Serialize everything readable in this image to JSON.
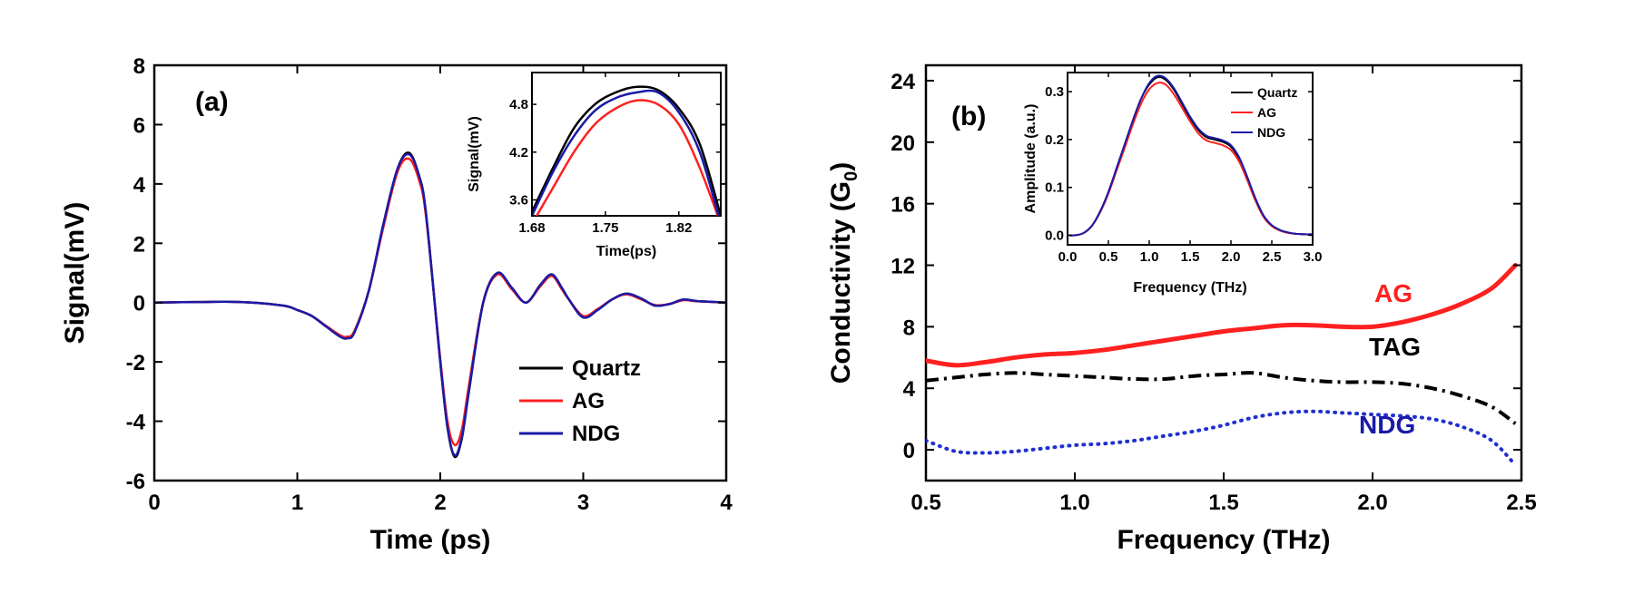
{
  "colors": {
    "quartz": "#000000",
    "ag": "#ff2020",
    "ndg": "#1a1aa8",
    "ndg_dot": "#2030d0"
  },
  "chart_data": [
    {
      "id": "a",
      "type": "line",
      "panel_label": "(a)",
      "xlabel": "Time (ps)",
      "ylabel": "Signal(mV)",
      "xlim": [
        0,
        4
      ],
      "ylim": [
        -6,
        8
      ],
      "x_ticks": [
        0,
        1,
        2,
        3,
        4
      ],
      "y_ticks": [
        -6,
        -4,
        -2,
        0,
        2,
        4,
        6,
        8
      ],
      "x_tick_labels": [
        "0",
        "1",
        "2",
        "3",
        "4"
      ],
      "y_tick_labels": [
        "-6",
        "-4",
        "-2",
        "0",
        "2",
        "4",
        "6",
        "8"
      ],
      "legend": [
        "Quartz",
        "AG",
        "NDG"
      ],
      "legend_position": "lower-right",
      "x": [
        0,
        0.3,
        0.6,
        0.9,
        1.0,
        1.1,
        1.2,
        1.3,
        1.35,
        1.4,
        1.5,
        1.6,
        1.7,
        1.78,
        1.85,
        1.9,
        2.0,
        2.05,
        2.1,
        2.15,
        2.2,
        2.3,
        2.4,
        2.5,
        2.6,
        2.7,
        2.78,
        2.85,
        2.9,
        3.0,
        3.1,
        3.2,
        3.3,
        3.4,
        3.5,
        3.6,
        3.7,
        3.8,
        4.0
      ],
      "series": [
        {
          "name": "Quartz",
          "values": [
            0,
            0.02,
            0.02,
            -0.1,
            -0.25,
            -0.45,
            -0.8,
            -1.15,
            -1.2,
            -1.0,
            0.4,
            2.6,
            4.5,
            5.05,
            4.3,
            3.0,
            -2.0,
            -4.2,
            -5.2,
            -4.6,
            -3.0,
            0.0,
            1.0,
            0.5,
            0.0,
            0.6,
            0.95,
            0.5,
            0.1,
            -0.5,
            -0.25,
            0.1,
            0.3,
            0.15,
            -0.1,
            -0.05,
            0.1,
            0.05,
            0
          ]
        },
        {
          "name": "AG",
          "values": [
            0,
            0.02,
            0.02,
            -0.1,
            -0.25,
            -0.45,
            -0.78,
            -1.1,
            -1.15,
            -0.95,
            0.4,
            2.5,
            4.4,
            4.85,
            4.15,
            2.9,
            -1.9,
            -4.0,
            -4.8,
            -4.3,
            -2.8,
            0.0,
            0.95,
            0.45,
            0.0,
            0.55,
            0.9,
            0.45,
            0.1,
            -0.45,
            -0.22,
            0.1,
            0.28,
            0.12,
            -0.08,
            -0.05,
            0.08,
            0.04,
            0
          ]
        },
        {
          "name": "NDG",
          "values": [
            0,
            0.02,
            0.02,
            -0.1,
            -0.25,
            -0.45,
            -0.8,
            -1.15,
            -1.2,
            -1.0,
            0.4,
            2.6,
            4.5,
            5.0,
            4.3,
            3.0,
            -2.0,
            -4.2,
            -5.15,
            -4.55,
            -3.0,
            0.0,
            1.0,
            0.5,
            0.0,
            0.6,
            0.95,
            0.5,
            0.1,
            -0.5,
            -0.25,
            0.1,
            0.3,
            0.15,
            -0.1,
            -0.05,
            0.1,
            0.05,
            0
          ]
        }
      ],
      "inset": {
        "type": "line",
        "xlabel": "Time(ps)",
        "ylabel": "Signal(mV)",
        "xlim": [
          1.68,
          1.86
        ],
        "ylim": [
          3.4,
          5.2
        ],
        "x_ticks": [
          1.68,
          1.75,
          1.82
        ],
        "y_ticks": [
          3.6,
          4.2,
          4.8
        ],
        "x_tick_labels": [
          "1.68",
          "1.75",
          "1.82"
        ],
        "y_tick_labels": [
          "3.6",
          "4.2",
          "4.8"
        ],
        "x": [
          1.68,
          1.7,
          1.72,
          1.74,
          1.76,
          1.78,
          1.8,
          1.82,
          1.84,
          1.86
        ],
        "series": [
          {
            "name": "Quartz",
            "values": [
              3.45,
              4.0,
              4.5,
              4.8,
              4.95,
              5.02,
              4.98,
              4.75,
              4.3,
              3.4
            ]
          },
          {
            "name": "AG",
            "values": [
              3.3,
              3.75,
              4.2,
              4.55,
              4.75,
              4.85,
              4.8,
              4.55,
              4.0,
              3.3
            ]
          },
          {
            "name": "NDG",
            "values": [
              3.4,
              3.95,
              4.4,
              4.72,
              4.88,
              4.95,
              4.95,
              4.7,
              4.2,
              3.3
            ]
          }
        ]
      }
    },
    {
      "id": "b",
      "type": "line",
      "panel_label": "(b)",
      "xlabel": "Frequency (THz)",
      "ylabel": "Conductivity (G",
      "ylabel_sub": "0",
      "ylabel_end": ")",
      "xlim": [
        0.5,
        2.5
      ],
      "ylim": [
        -2,
        25
      ],
      "x_ticks": [
        0.5,
        1.0,
        1.5,
        2.0,
        2.5
      ],
      "y_ticks": [
        0,
        4,
        8,
        12,
        16,
        20,
        24
      ],
      "x_tick_labels": [
        "0.5",
        "1.0",
        "1.5",
        "2.0",
        "2.5"
      ],
      "y_tick_labels": [
        "0",
        "4",
        "8",
        "12",
        "16",
        "20",
        "24"
      ],
      "annotations": [
        "AG",
        "TAG",
        "NDG"
      ],
      "x": [
        0.5,
        0.6,
        0.7,
        0.8,
        0.9,
        1.0,
        1.1,
        1.2,
        1.3,
        1.4,
        1.5,
        1.6,
        1.7,
        1.8,
        1.9,
        2.0,
        2.1,
        2.2,
        2.3,
        2.4,
        2.48
      ],
      "series": [
        {
          "name": "AG",
          "style": "solid",
          "values": [
            5.8,
            5.5,
            5.7,
            6.0,
            6.2,
            6.3,
            6.5,
            6.8,
            7.1,
            7.4,
            7.7,
            7.9,
            8.1,
            8.1,
            8.0,
            8.0,
            8.3,
            8.8,
            9.5,
            10.5,
            12.0
          ]
        },
        {
          "name": "TAG",
          "style": "dashdot",
          "values": [
            4.5,
            4.7,
            4.9,
            5.0,
            4.9,
            4.8,
            4.7,
            4.6,
            4.6,
            4.8,
            4.9,
            5.0,
            4.7,
            4.5,
            4.4,
            4.4,
            4.3,
            4.0,
            3.5,
            2.8,
            1.7
          ]
        },
        {
          "name": "NDG",
          "style": "dotted",
          "values": [
            0.6,
            -0.1,
            -0.2,
            -0.1,
            0.1,
            0.3,
            0.4,
            0.6,
            0.9,
            1.2,
            1.6,
            2.1,
            2.4,
            2.5,
            2.4,
            2.3,
            2.2,
            2.0,
            1.5,
            0.6,
            -1.0
          ]
        }
      ],
      "inset": {
        "type": "line",
        "xlabel": "Frequency (THz)",
        "ylabel": "Amplitude (a.u.)",
        "xlim": [
          0,
          3.0
        ],
        "ylim": [
          -0.02,
          0.34
        ],
        "x_ticks": [
          0,
          0.5,
          1.0,
          1.5,
          2.0,
          2.5,
          3.0
        ],
        "y_ticks": [
          0.0,
          0.1,
          0.2,
          0.3
        ],
        "x_tick_labels": [
          "0.0",
          "0.5",
          "1.0",
          "1.5",
          "2.0",
          "2.5",
          "3.0"
        ],
        "y_tick_labels": [
          "0.0",
          "0.1",
          "0.2",
          "0.3"
        ],
        "legend": [
          "Quartz",
          "AG",
          "NDG"
        ],
        "legend_position": "top-right",
        "x": [
          0,
          0.1,
          0.2,
          0.3,
          0.4,
          0.5,
          0.6,
          0.7,
          0.8,
          0.9,
          1.0,
          1.1,
          1.2,
          1.3,
          1.4,
          1.5,
          1.6,
          1.7,
          1.8,
          1.9,
          2.0,
          2.1,
          2.2,
          2.3,
          2.4,
          2.5,
          2.6,
          2.7,
          2.8,
          2.9,
          3.0
        ],
        "series": [
          {
            "name": "Quartz",
            "values": [
              0.0,
              0.0,
              0.005,
              0.02,
              0.05,
              0.09,
              0.14,
              0.19,
              0.24,
              0.285,
              0.315,
              0.33,
              0.325,
              0.305,
              0.275,
              0.245,
              0.22,
              0.205,
              0.2,
              0.195,
              0.185,
              0.16,
              0.12,
              0.075,
              0.04,
              0.02,
              0.01,
              0.005,
              0.003,
              0.002,
              0.002
            ]
          },
          {
            "name": "AG",
            "values": [
              0.0,
              0.0,
              0.005,
              0.02,
              0.048,
              0.087,
              0.135,
              0.183,
              0.232,
              0.275,
              0.305,
              0.318,
              0.315,
              0.295,
              0.267,
              0.238,
              0.213,
              0.198,
              0.193,
              0.188,
              0.178,
              0.154,
              0.115,
              0.072,
              0.038,
              0.019,
              0.01,
              0.005,
              0.003,
              0.002,
              0.002
            ]
          },
          {
            "name": "NDG",
            "values": [
              0.0,
              0.0,
              0.005,
              0.02,
              0.05,
              0.09,
              0.14,
              0.19,
              0.24,
              0.285,
              0.318,
              0.333,
              0.328,
              0.308,
              0.278,
              0.248,
              0.223,
              0.208,
              0.203,
              0.198,
              0.188,
              0.163,
              0.122,
              0.077,
              0.041,
              0.021,
              0.011,
              0.006,
              0.003,
              0.002,
              0.002
            ]
          }
        ]
      }
    }
  ]
}
